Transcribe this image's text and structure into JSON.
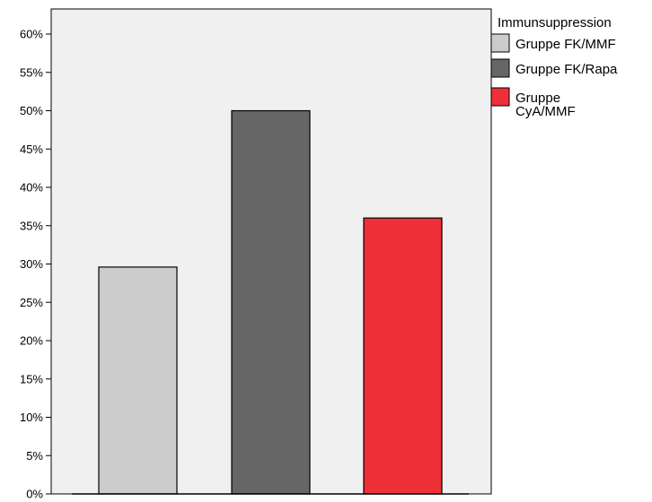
{
  "chart_data": {
    "type": "bar",
    "title": "",
    "xlabel": "",
    "ylabel": "",
    "categories": [
      "Gruppe FK/MMF",
      "Gruppe FK/Rapa",
      "Gruppe CyA/MMF"
    ],
    "values": [
      29.6,
      50.0,
      36.0
    ],
    "colors": [
      "#cccccc",
      "#666666",
      "#ef3038"
    ],
    "ylim": [
      0,
      60
    ],
    "y_tick_values": [
      0,
      5,
      10,
      15,
      20,
      25,
      30,
      35,
      40,
      45,
      50,
      55,
      60
    ],
    "y_tick_labels": [
      "0%",
      "5%",
      "10%",
      "15%",
      "20%",
      "25%",
      "30%",
      "35%",
      "40%",
      "45%",
      "50%",
      "55%",
      "60%"
    ],
    "grid": false,
    "plot_background": "#f0f0f0",
    "legend": {
      "title": "Immunsuppression",
      "placement": "right",
      "entries": [
        {
          "lines": [
            "Gruppe FK/MMF"
          ],
          "color": "#cccccc"
        },
        {
          "lines": [
            "Gruppe FK/Rapa"
          ],
          "color": "#666666"
        },
        {
          "lines": [
            "Gruppe",
            "CyA/MMF"
          ],
          "color": "#ef3038"
        }
      ]
    }
  }
}
